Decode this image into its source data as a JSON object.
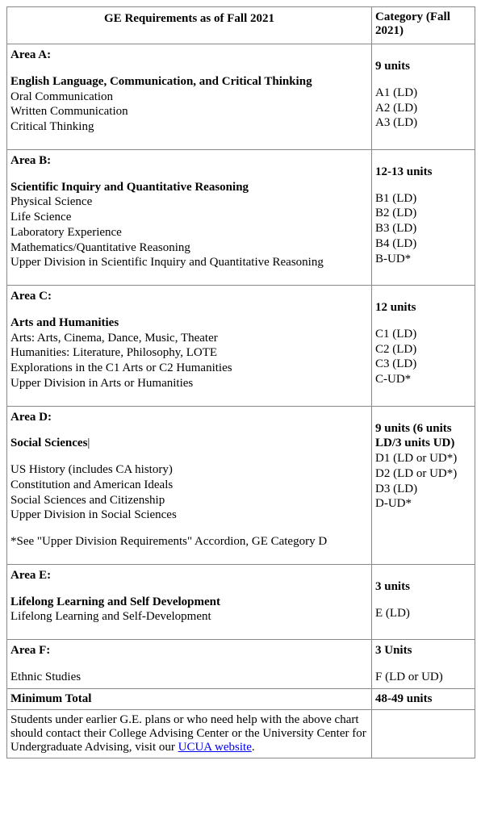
{
  "header": {
    "title": "GE Requirements as of Fall 2021",
    "category_label_line1": "Category (Fall",
    "category_label_line2": "2021)"
  },
  "areaA": {
    "area_label": "Area A:",
    "title": "English Language, Communication, and Critical Thinking",
    "items": [
      "Oral Communication",
      "Written Communication",
      "Critical Thinking"
    ],
    "units": "9 units",
    "codes": [
      "A1 (LD)",
      "A2 (LD)",
      "A3 (LD)"
    ]
  },
  "areaB": {
    "area_label": "Area B:",
    "title": "Scientific Inquiry and Quantitative Reasoning",
    "items": [
      "Physical Science",
      "Life Science",
      "Laboratory Experience",
      "Mathematics/Quantitative Reasoning",
      "Upper Division in Scientific Inquiry and Quantitative Reasoning"
    ],
    "units": "12-13 units",
    "codes": [
      "B1 (LD)",
      "B2 (LD)",
      "B3 (LD)",
      "B4 (LD)",
      "B-UD*"
    ]
  },
  "areaC": {
    "area_label": "Area C:",
    "title": "Arts and Humanities",
    "items": [
      "Arts: Arts, Cinema, Dance, Music, Theater",
      "Humanities: Literature, Philosophy, LOTE",
      "Explorations in the C1 Arts or C2 Humanities",
      "Upper Division in Arts or Humanities"
    ],
    "units": "12 units",
    "codes": [
      "C1 (LD)",
      "C2 (LD)",
      "C3 (LD)",
      "C-UD*"
    ]
  },
  "areaD": {
    "area_label": "Area D:",
    "title": "Social Sciences",
    "items": [
      "US History (includes CA history)",
      "Constitution and American Ideals",
      "Social Sciences and Citizenship",
      "Upper Division in Social Sciences"
    ],
    "footnote": "*See \"Upper Division Requirements\" Accordion, GE Category D",
    "units_line1": "9 units (6 units",
    "units_line2": "LD/3 units UD)",
    "codes": [
      "D1 (LD or UD*)",
      "D2 (LD or UD*)",
      "D3 (LD)",
      "D-UD*"
    ]
  },
  "areaE": {
    "area_label": "Area E:",
    "title": "Lifelong Learning and Self Development",
    "items": [
      "Lifelong Learning and Self-Development"
    ],
    "units": "3 units",
    "codes": [
      "E (LD)"
    ]
  },
  "areaF": {
    "area_label": "Area F:",
    "items": [
      "Ethnic Studies"
    ],
    "units": "3 Units",
    "codes": [
      "F (LD or UD)"
    ]
  },
  "total": {
    "label": "Minimum Total",
    "units": "48-49 units"
  },
  "footer": {
    "text_before": "Students under earlier G.E. plans or who need help with the above chart should contact their College Advising Center or the University Center for Undergraduate Advising, visit our ",
    "link_text": "UCUA website",
    "text_after": "."
  },
  "colors": {
    "border": "#888888",
    "text": "#000000",
    "link": "#0000ee",
    "background": "#ffffff"
  }
}
